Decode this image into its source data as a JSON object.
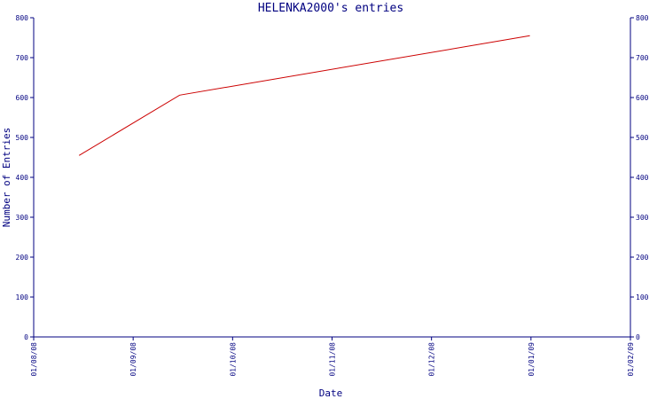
{
  "chart_data": {
    "type": "line",
    "title": "HELENKA2000's entries",
    "xlabel": "Date",
    "ylabel": "Number of Entries",
    "ylim": [
      0,
      800
    ],
    "yticks": [
      0,
      100,
      200,
      300,
      400,
      500,
      600,
      700,
      800
    ],
    "xticks": [
      "01/08/08",
      "01/09/08",
      "01/10/08",
      "01/11/08",
      "01/12/08",
      "01/01/09",
      "01/02/09"
    ],
    "xlim": [
      "2008-08-01",
      "2009-02-01"
    ],
    "grid": false,
    "series": [
      {
        "points": [
          {
            "x": "2008-08-15",
            "y": 455
          },
          {
            "x": "2008-09-15",
            "y": 606
          },
          {
            "x": "2009-01-01",
            "y": 755
          }
        ]
      }
    ],
    "colors": {
      "axis": "#000080",
      "line": "#cc0000"
    }
  }
}
